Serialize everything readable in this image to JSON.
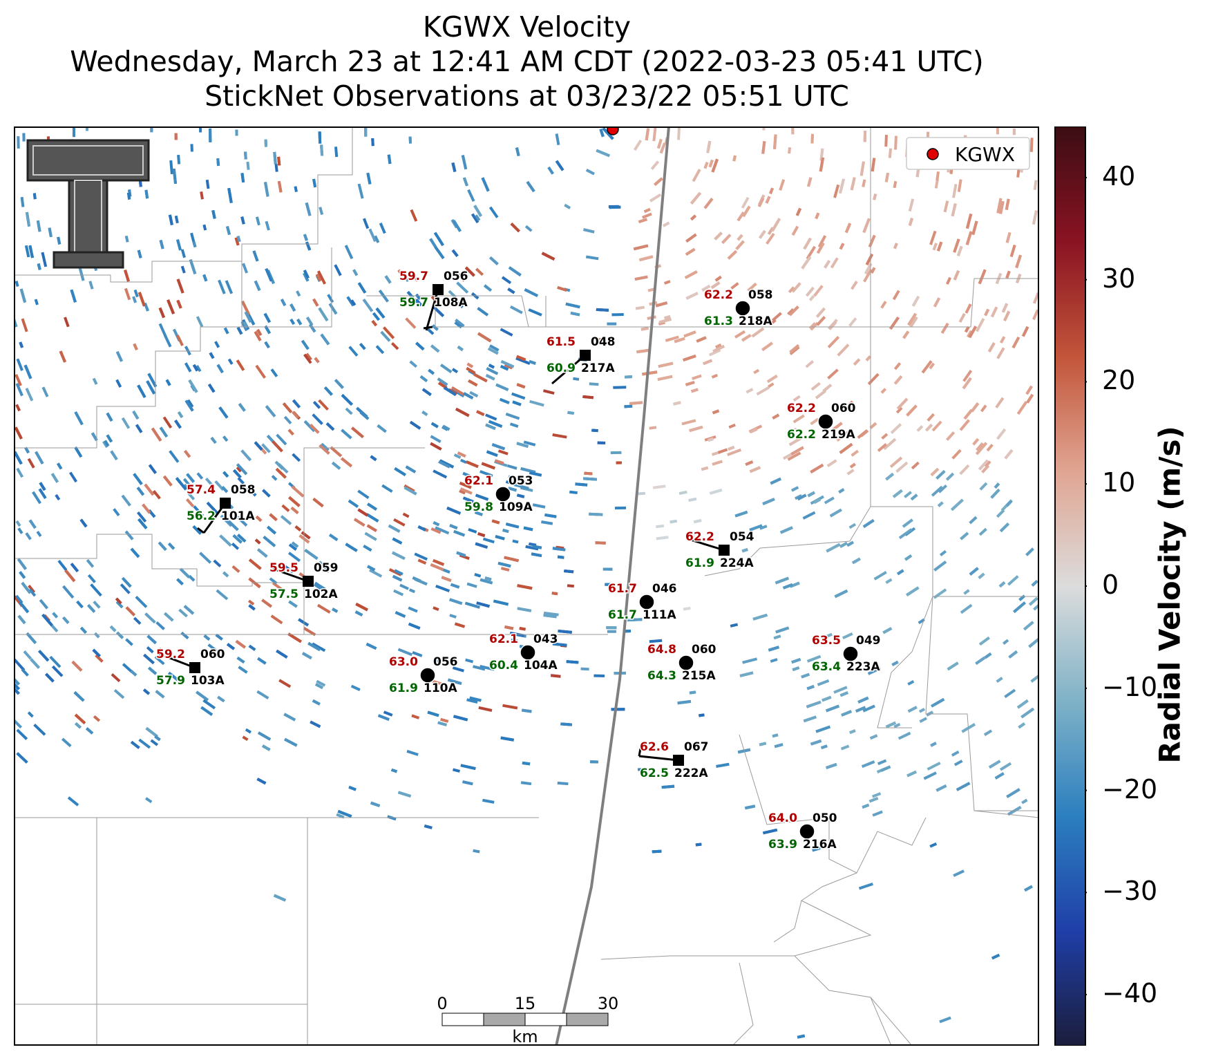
{
  "title": {
    "line1": "KGWX Velocity",
    "line2": "Wednesday, March 23 at 12:41 AM CDT (2022-03-23 05:41 UTC)",
    "line3": "StickNet Observations at 03/23/22 05:51 UTC"
  },
  "legend": {
    "label": "KGWX",
    "marker_color": "#e00000"
  },
  "colorbar": {
    "label": "Radial Velocity (m/s)",
    "ticks": [
      "40",
      "30",
      "20",
      "10",
      "0",
      "−10",
      "−20",
      "−30",
      "−40"
    ],
    "range": [
      -45,
      45
    ],
    "stops": [
      "#1b1d3b",
      "#1f3fa8",
      "#2c7fbf",
      "#7fb2c7",
      "#dcdcdc",
      "#e0a592",
      "#c2553a",
      "#8a1322",
      "#3b0d14"
    ]
  },
  "scalebar": {
    "ticks": [
      "0",
      "15",
      "30"
    ],
    "unit": "km"
  },
  "logo": {
    "text": "TT"
  },
  "stations": [
    {
      "id": "108A",
      "marker": "square",
      "temp": "59.7",
      "dew": "59.7",
      "dir": "056"
    },
    {
      "id": "217A",
      "marker": "square",
      "temp": "61.5",
      "dew": "60.9",
      "dir": "048"
    },
    {
      "id": "218A",
      "marker": "circle",
      "temp": "62.2",
      "dew": "61.3",
      "dir": "058"
    },
    {
      "id": "219A",
      "marker": "circle",
      "temp": "62.2",
      "dew": "62.2",
      "dir": "060"
    },
    {
      "id": "109A",
      "marker": "circle",
      "temp": "62.1",
      "dew": "59.8",
      "dir": "053"
    },
    {
      "id": "101A",
      "marker": "square",
      "temp": "57.4",
      "dew": "56.2",
      "dir": "058"
    },
    {
      "id": "224A",
      "marker": "square",
      "temp": "62.2",
      "dew": "61.9",
      "dir": "054"
    },
    {
      "id": "102A",
      "marker": "square",
      "temp": "59.5",
      "dew": "57.5",
      "dir": "059"
    },
    {
      "id": "111A",
      "marker": "circle",
      "temp": "61.7",
      "dew": "61.7",
      "dir": "046"
    },
    {
      "id": "104A",
      "marker": "circle",
      "temp": "62.1",
      "dew": "60.4",
      "dir": "043"
    },
    {
      "id": "215A",
      "marker": "circle",
      "temp": "64.8",
      "dew": "64.3",
      "dir": "060"
    },
    {
      "id": "223A",
      "marker": "circle",
      "temp": "63.5",
      "dew": "63.4",
      "dir": "049"
    },
    {
      "id": "103A",
      "marker": "square",
      "temp": "59.2",
      "dew": "57.9",
      "dir": "060"
    },
    {
      "id": "110A",
      "marker": "circle",
      "temp": "63.0",
      "dew": "61.9",
      "dir": "056"
    },
    {
      "id": "222A",
      "marker": "square",
      "temp": "62.6",
      "dew": "62.5",
      "dir": "067"
    },
    {
      "id": "216A",
      "marker": "circle",
      "temp": "64.0",
      "dew": "63.9",
      "dir": "050"
    }
  ]
}
